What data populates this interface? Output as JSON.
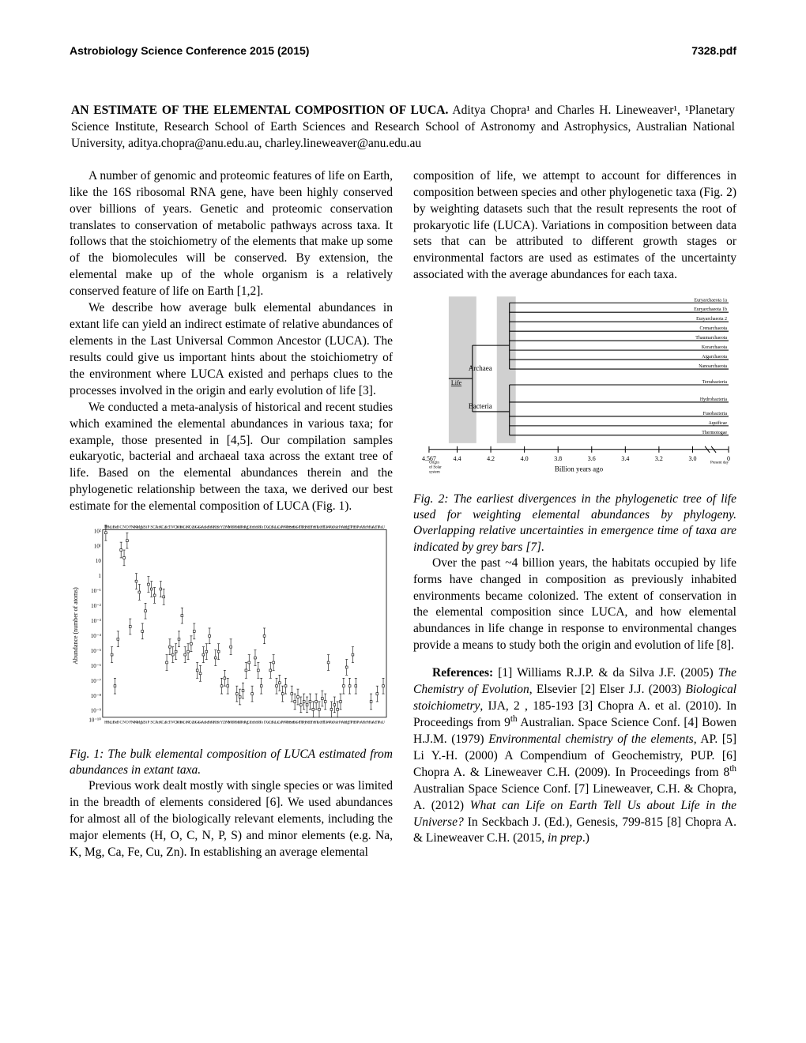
{
  "header": {
    "left": "Astrobiology Science Conference 2015 (2015)",
    "right": "7328.pdf"
  },
  "title": "AN ESTIMATE OF THE ELEMENTAL COMPOSITION OF LUCA.",
  "authors": " Aditya Chopra¹ and Charles H. Lineweaver¹, ¹Planetary Science Institute, Research School of Earth Sciences and Research School of Astronomy and Astrophysics, Australian National University, aditya.chopra@anu.edu.au, charley.lineweaver@anu.edu.au",
  "para1": "A number of genomic and proteomic features of life on Earth, like the 16S ribosomal RNA gene, have been highly conserved over billions of years. Genetic and proteomic conservation translates to conservation of  metabolic pathways across taxa. It follows that the stoichiometry of the elements that make up some of the biomolecules will be conserved. By extension, the elemental make up of the whole organism is a relatively conserved feature of life on Earth [1,2].",
  "para2": "We describe how average bulk elemental abundances in extant life can yield an indirect estimate of relative abundances of elements in the Last Universal Common Ancestor (LUCA). The results could give us important hints about the stoichiometry of the environment where LUCA existed and perhaps clues to the processes involved in the origin and early evolution of life [3].",
  "para3": "We conducted a meta-analysis of historical and recent studies which examined the elemental abundances in various taxa; for example, those presented in [4,5]. Our compilation samples eukaryotic, bacterial and archaeal taxa across the extant tree of life. Based on the elemental abundances therein and the phylogenetic relationship between the taxa, we derived our best estimate for the elemental composition of LUCA (Fig. 1).",
  "fig1_caption": "Fig. 1: The bulk elemental composition of LUCA estimated from abundances in extant taxa.",
  "para4": "Previous work dealt mostly with single species or was limited in the breadth of elements considered [6]. We used abundances for almost all of the biologically relevant elements, including the major elements (H, O, C, N, P, S) and minor elements (e.g. Na, K, Mg, Ca, Fe, Cu, Zn). In establishing an average elemental",
  "para5": "composition of life, we attempt to account for differences in composition between species and other phylogenetic taxa (Fig. 2) by weighting datasets such that the result represents the root of prokaryotic life (LUCA). Variations in composition between data sets that can be attributed to different growth stages or environmental factors are used as estimates of the uncertainty associated with the average abundances for each taxa.",
  "fig2_caption": "Fig. 2: The earliest divergences in the phylogenetic tree of life used for weighting elemental abundances by phylogeny. Overlapping relative uncertainties in emergence time of taxa are indicated by grey bars [7].",
  "para6": "Over the past ~4 billion years, the habitats occupied by life forms have changed in composition as previously inhabited environments became colonized. The extent of conservation in the elemental composition since LUCA, and how elemental abundances in life change in response to environmental changes provide a means to study both the origin and evolution of life [8].",
  "references_label": "References:",
  "references_body": " [1] Williams R.J.P. & da Silva J.F. (2005) <i>The Chemistry of Evolution</i>, Elsevier [2] Elser J.J. (2003) <i>Biological stoichiometry</i>, IJA, 2 , 185-193 [3] Chopra A. et al. (2010). In Proceedings from 9<sup>th</sup> Australian. Space Science Conf. [4] Bowen H.J.M. (1979) <i>Environmental chemistry of the elements</i>, AP. [5] Li Y.-H. (2000) A Compendium of Geochemistry, PUP. [6] Chopra A. & Lineweaver C.H. (2009). In Proceedings from 8<sup>th</sup> Australian Space Science Conf. [7] Lineweaver, C.H. & Chopra, A. (2012)  <i>What can Life on Earth Tell Us about Life in the Universe?</i> In Seckbach J. (Ed.), Genesis, 799-815 [8] Chopra A. & Lineweaver C.H. (2015, <i>in prep</i>.)",
  "chart1": {
    "type": "scatter-log",
    "ylabel": "Abundance (number of atoms)",
    "ylim": [
      -10,
      2
    ],
    "background_color": "#ffffff",
    "axis_color": "#000000",
    "marker_color": "#000000",
    "elements": [
      "H",
      "He",
      "Li",
      "Be",
      "B",
      "C",
      "N",
      "O",
      "F",
      "Ne",
      "Na",
      "Mg",
      "Al",
      "Si",
      "P",
      "S",
      "Cl",
      "Ar",
      "K",
      "Ca",
      "Sc",
      "Ti",
      "V",
      "Cr",
      "Mn",
      "Fe",
      "Co",
      "Ni",
      "Cu",
      "Zn",
      "Ga",
      "Ge",
      "As",
      "Se",
      "Br",
      "Kr",
      "Rb",
      "Sr",
      "Y",
      "Zr",
      "Nb",
      "Mo",
      "Tc",
      "Ru",
      "Rh",
      "Pd",
      "Ag",
      "Cd",
      "In",
      "Sn",
      "Sb",
      "Te",
      "I",
      "Xe",
      "Cs",
      "Ba",
      "La",
      "Ce",
      "Pr",
      "Nd",
      "Pm",
      "Sm",
      "Eu",
      "Gd",
      "Tb",
      "Dy",
      "Ho",
      "Er",
      "Tm",
      "Yb",
      "Lu",
      "Hf",
      "Ta",
      "W",
      "Re",
      "Os",
      "Ir",
      "Pt",
      "Au",
      "Hg",
      "Tl",
      "Pb",
      "Bi",
      "Po",
      "At",
      "Rn",
      "Fr",
      "Ra",
      "Ac",
      "Th",
      "Pa",
      "U"
    ],
    "log_values": [
      1.8,
      null,
      -6,
      -8,
      -5,
      0.7,
      0.2,
      1.3,
      -4.2,
      null,
      -1.3,
      -2,
      -4.5,
      -3.2,
      -1.5,
      -1.8,
      -2.2,
      null,
      -1.8,
      -2.3,
      -6.5,
      -5.5,
      -6,
      -5.8,
      -5,
      -3.5,
      -6,
      -5.8,
      -5.3,
      -4.5,
      -7,
      -7.2,
      -6,
      -5.8,
      -4.8,
      null,
      -6.2,
      -5.8,
      -8,
      -7.5,
      -8,
      -5.5,
      null,
      -8.5,
      -8.7,
      -8.3,
      -7,
      -6.5,
      -8.5,
      -6.2,
      -7,
      -8,
      -4.8,
      null,
      -7,
      -6.5,
      -8,
      -7.8,
      -8.5,
      -8,
      null,
      -8.5,
      -9,
      -8.7,
      -9.2,
      -9,
      -9.2,
      -9,
      -9.5,
      -9,
      -9.5,
      -8.8,
      -9,
      -6.5,
      -9.5,
      -9.2,
      -9.5,
      -9,
      -8,
      -6.8,
      -8,
      -6,
      -8,
      null,
      null,
      null,
      null,
      -9,
      null,
      -8.5,
      null,
      -8
    ],
    "error_bar": 0.5
  },
  "chart2": {
    "type": "phylogeny-timeline",
    "xlabel": "Billion years ago",
    "xlim": [
      4.567,
      0
    ],
    "xticks": [
      4.567,
      4.4,
      4.2,
      4.0,
      3.8,
      3.6,
      3.4,
      3.2,
      3.0,
      0
    ],
    "background_color": "#ffffff",
    "grey_bar_color": "#d0d0d0",
    "line_color": "#000000",
    "root_label": "Life",
    "domains": [
      "Archaea",
      "Bacteria"
    ],
    "archaea_taxa": [
      "Euryarchaeota 1a",
      "Euryarchaeota 1b",
      "Euryarchaeota 2",
      "Crenarchaeota",
      "Thaumarchaeota",
      "Korarchaeota",
      "Aigarchaeota",
      "Nanoarchaeota"
    ],
    "bacteria_taxa": [
      "Terrabacteria",
      "Hydrobacteria",
      "Fusobacteria",
      "Aquificae",
      "Thermotogae"
    ],
    "label_fontsize": 6
  }
}
